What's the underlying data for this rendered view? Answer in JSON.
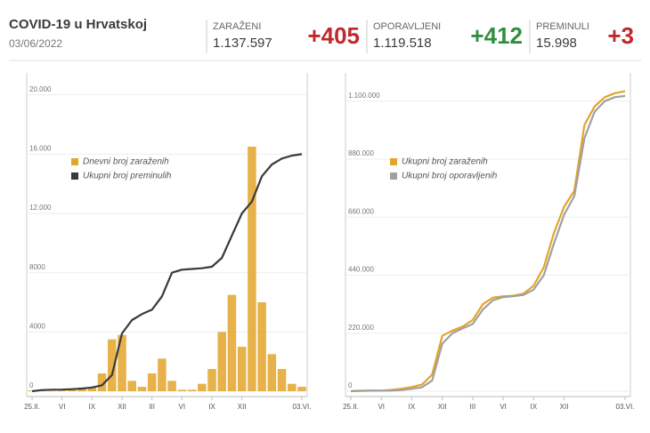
{
  "header": {
    "title": "COVID-19 u Hrvatskoj",
    "date": "03/06/2022"
  },
  "stats": [
    {
      "label": "ZARAŽENI",
      "total": "1.137.597",
      "change": "+405",
      "color": "#c0282e"
    },
    {
      "label": "OPORAVLJENI",
      "total": "1.119.518",
      "change": "+412",
      "color": "#2f8f3f"
    },
    {
      "label": "PREMINULI",
      "total": "15.998",
      "change": "+3",
      "color": "#c0282e"
    }
  ],
  "chart_data": [
    {
      "type": "combo",
      "legend": "upper left",
      "grid": true,
      "categories": [
        "25.II.",
        null,
        null,
        "VI",
        null,
        null,
        "IX",
        null,
        null,
        "XII",
        null,
        null,
        "III",
        null,
        null,
        "VI",
        null,
        null,
        "IX",
        null,
        null,
        "XII",
        null,
        null,
        null,
        null,
        null,
        "03.VI."
      ],
      "ylim": [
        0,
        21000
      ],
      "yticks": [
        0,
        4000,
        8000,
        {
          "value": 12000,
          "label": "12.000"
        },
        {
          "value": 16000,
          "label": "16.000"
        },
        {
          "value": 20000,
          "label": "20.000"
        }
      ],
      "series": [
        {
          "name": "Dnevni broj zaraženih",
          "type": "bar",
          "color": "#e3a52a",
          "values": [
            50,
            60,
            20,
            50,
            100,
            250,
            250,
            1200,
            3500,
            3800,
            700,
            300,
            1200,
            2200,
            700,
            100,
            100,
            500,
            1500,
            4000,
            6500,
            3000,
            16500,
            6000,
            2500,
            1500,
            500,
            300
          ]
        },
        {
          "name": "Ukupni broj preminulih",
          "type": "line",
          "color": "#3a3a3a",
          "values": [
            0,
            80,
            100,
            110,
            140,
            180,
            250,
            400,
            1100,
            3900,
            4800,
            5200,
            5500,
            6400,
            8000,
            8200,
            8250,
            8300,
            8400,
            9000,
            10500,
            12000,
            12800,
            14500,
            15300,
            15700,
            15900,
            15998
          ]
        }
      ]
    },
    {
      "type": "line",
      "legend": "upper left",
      "grid": true,
      "categories": [
        "25.II.",
        null,
        null,
        "VI",
        null,
        null,
        "IX",
        null,
        null,
        "XII",
        null,
        null,
        "III",
        null,
        null,
        "VI",
        null,
        null,
        "IX",
        null,
        null,
        "XII",
        null,
        null,
        null,
        null,
        null,
        "03.VI."
      ],
      "ylim": [
        0,
        1180000
      ],
      "yticks": [
        0,
        {
          "value": 220000,
          "label": "220.000"
        },
        {
          "value": 440000,
          "label": "440.000"
        },
        {
          "value": 660000,
          "label": "660.000"
        },
        {
          "value": 880000,
          "label": "880.000"
        },
        {
          "value": 1100000,
          "label": "1.100.000"
        }
      ],
      "series": [
        {
          "name": "Ukupni broj zaraženih",
          "type": "line",
          "color": "#e3a52a",
          "values": [
            1000,
            2100,
            2250,
            2500,
            5000,
            9500,
            16000,
            25000,
            63000,
            210000,
            230000,
            245000,
            270000,
            330000,
            355000,
            360000,
            362000,
            370000,
            400000,
            470000,
            600000,
            700000,
            760000,
            1010000,
            1080000,
            1115000,
            1130000,
            1137597
          ]
        },
        {
          "name": "Ukupni broj oporavljenih",
          "type": "line",
          "color": "#a0a0a0",
          "values": [
            0,
            1000,
            2000,
            2200,
            2400,
            4500,
            9000,
            15000,
            40000,
            180000,
            220000,
            238000,
            255000,
            310000,
            345000,
            357000,
            360000,
            365000,
            385000,
            440000,
            560000,
            670000,
            740000,
            960000,
            1060000,
            1100000,
            1115000,
            1119518
          ]
        }
      ]
    }
  ]
}
